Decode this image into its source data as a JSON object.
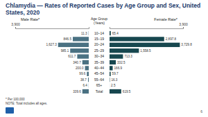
{
  "chart_data": {
    "type": "bar",
    "orientation": "horizontal",
    "title": "Chlamydia — Rates of Reported Cases by Age Group and Sex, United States, 2020",
    "y_label": "Age Group (Years)",
    "categories": [
      "10–14",
      "15–19",
      "20–24",
      "25–29",
      "30–34",
      "35–39",
      "40–44",
      "45–54",
      "55–64",
      "65+",
      "Total"
    ],
    "series": [
      {
        "name": "Male Rate*",
        "color": "#4a7182",
        "values": [
          11.3,
          846.5,
          1627.3,
          985.1,
          611.7,
          340.7,
          200.0,
          99.6,
          38.7,
          6.4,
          339.6
        ],
        "value_labels": [
          "11.3",
          "846.5",
          "1,627.3",
          "985.1",
          "611.7",
          "340.7",
          "200.0",
          "99.6",
          "38.7",
          "6.4",
          "339.6"
        ]
      },
      {
        "name": "Female Rate*",
        "color": "#17474f",
        "values": [
          65.4,
          2897.8,
          3729.8,
          1558.5,
          713.3,
          332.5,
          166.9,
          59.7,
          16.3,
          2.5,
          619.5
        ],
        "value_labels": [
          "65.4",
          "2,897.8",
          "3,729.8",
          "1,558.5",
          "713.3",
          "332.5",
          "166.9",
          "59.7",
          "16.3",
          "2.5",
          "619.5"
        ]
      }
    ],
    "xlim": [
      0,
      3900
    ],
    "xticks": [
      {
        "value": 3900,
        "label": "3,900"
      }
    ],
    "data_labels": true,
    "grid": false,
    "footnotes": [
      "* Per 100,000",
      "NOTE: Total includes all ages."
    ],
    "page_number": "6"
  }
}
